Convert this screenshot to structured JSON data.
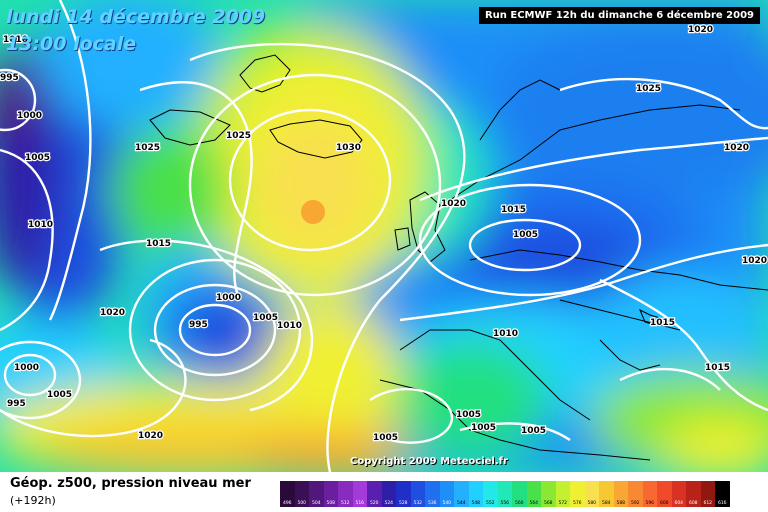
{
  "title": {
    "date": "lundi 14 décembre 2009",
    "time": "13:00 locale"
  },
  "run_info": "Run ECMWF 12h du dimanche 6 décembre 2009",
  "copyright": "Copyright 2009 Meteociel.fr",
  "legend": {
    "title": "Géop. z500, pression niveau mer",
    "subtitle": "(+192h)",
    "scale": [
      {
        "value": "496",
        "color": "#2a0a3a"
      },
      {
        "value": "500",
        "color": "#3b0f55"
      },
      {
        "value": "504",
        "color": "#52177a"
      },
      {
        "value": "508",
        "color": "#6a1f9e"
      },
      {
        "value": "512",
        "color": "#8a2bbf"
      },
      {
        "value": "516",
        "color": "#a23bd9"
      },
      {
        "value": "520",
        "color": "#5a1fb0"
      },
      {
        "value": "524",
        "color": "#2f1fa8"
      },
      {
        "value": "528",
        "color": "#1f2fc8"
      },
      {
        "value": "532",
        "color": "#1f4fe0"
      },
      {
        "value": "536",
        "color": "#1f6ff0"
      },
      {
        "value": "540",
        "color": "#1f8ff8"
      },
      {
        "value": "544",
        "color": "#22b0ff"
      },
      {
        "value": "548",
        "color": "#22d0ff"
      },
      {
        "value": "552",
        "color": "#22e8e8"
      },
      {
        "value": "556",
        "color": "#22e8b8"
      },
      {
        "value": "560",
        "color": "#22e080"
      },
      {
        "value": "564",
        "color": "#4ae04a"
      },
      {
        "value": "568",
        "color": "#8ae832"
      },
      {
        "value": "572",
        "color": "#c4f032"
      },
      {
        "value": "576",
        "color": "#f0f032"
      },
      {
        "value": "580",
        "color": "#f8e050"
      },
      {
        "value": "584",
        "color": "#f8c832"
      },
      {
        "value": "588",
        "color": "#f8a832"
      },
      {
        "value": "592",
        "color": "#f88832"
      },
      {
        "value": "596",
        "color": "#f86832"
      },
      {
        "value": "600",
        "color": "#f04a2a"
      },
      {
        "value": "604",
        "color": "#d83222"
      },
      {
        "value": "608",
        "color": "#b82218"
      },
      {
        "value": "612",
        "color": "#901810"
      },
      {
        "value": "616",
        "color": "#000000"
      }
    ]
  },
  "pressure_labels": [
    {
      "text": "1010"
    },
    {
      "text": "995"
    },
    {
      "text": "1000"
    },
    {
      "text": "1005"
    },
    {
      "text": "1025"
    },
    {
      "text": "1025"
    },
    {
      "text": "1030"
    },
    {
      "text": "1010"
    },
    {
      "text": "1015"
    },
    {
      "text": "1020"
    },
    {
      "text": "1000"
    },
    {
      "text": "995"
    },
    {
      "text": "1005"
    },
    {
      "text": "1010"
    },
    {
      "text": "1020"
    },
    {
      "text": "1000"
    },
    {
      "text": "1005"
    },
    {
      "text": "995"
    },
    {
      "text": "1020"
    },
    {
      "text": "1015"
    },
    {
      "text": "1005"
    },
    {
      "text": "1020"
    },
    {
      "text": "1025"
    },
    {
      "text": "1020"
    },
    {
      "text": "1020"
    },
    {
      "text": "1015"
    },
    {
      "text": "1010"
    },
    {
      "text": "1015"
    },
    {
      "text": "1005"
    },
    {
      "text": "1005"
    },
    {
      "text": "1005"
    },
    {
      "text": "1005"
    }
  ]
}
